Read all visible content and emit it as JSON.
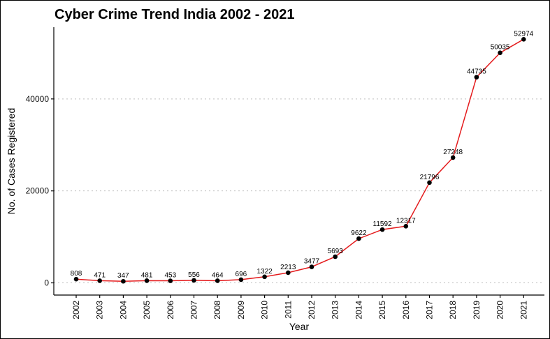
{
  "chart_data": {
    "type": "line",
    "title": "Cyber Crime Trend India 2002 - 2021",
    "xlabel": "Year",
    "ylabel": "No. of Cases Registered",
    "x": [
      "2002",
      "2003",
      "2004",
      "2005",
      "2006",
      "2007",
      "2008",
      "2009",
      "2010",
      "2011",
      "2012",
      "2013",
      "2014",
      "2015",
      "2016",
      "2017",
      "2018",
      "2019",
      "2020",
      "2021"
    ],
    "series": [
      {
        "values": [
          808,
          471,
          347,
          481,
          453,
          556,
          464,
          696,
          1322,
          2213,
          3477,
          5693,
          9622,
          11592,
          12317,
          21796,
          27248,
          44735,
          50035,
          52974
        ]
      }
    ],
    "data_labels": [
      "808",
      "471",
      "347",
      "481",
      "453",
      "556",
      "464",
      "696",
      "1322",
      "2213",
      "3477",
      "5693",
      "9622",
      "11592",
      "12317",
      "21796",
      "27248",
      "44735",
      "50035",
      "52974"
    ],
    "y_ticks": [
      0,
      20000,
      40000
    ],
    "y_tick_labels": [
      "0",
      "20000",
      "40000"
    ],
    "ylim": [
      -2650,
      55600
    ],
    "grid": "horizontal dotted",
    "line_color": "#e41a1c",
    "point_color": "#000000",
    "legend": "none"
  }
}
